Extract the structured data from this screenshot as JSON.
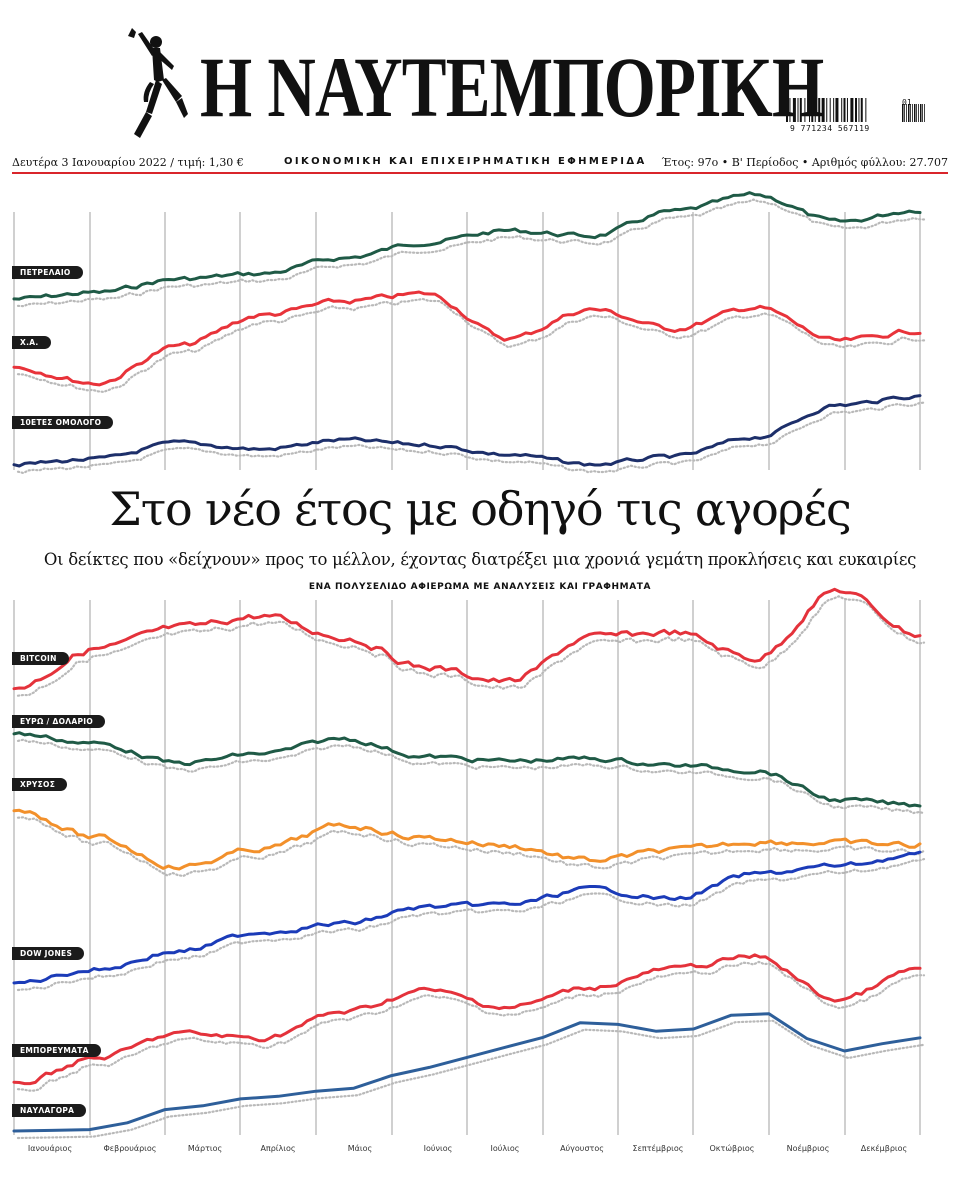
{
  "masthead": {
    "title": "Η ΝΑΥΤΕΜΠΟΡΙΚΗ",
    "date_price": "Δευτέρα 3 Ιανουαρίου 2022 / τιμή: 1,30 €",
    "tagline": "ΟΙΚΟΝΟΜΙΚΗ ΚΑΙ ΕΠΙΧΕΙΡΗΜΑΤΙΚΗ ΕΦΗΜΕΡΙΔΑ",
    "issue_info": "Έτος: 97ο • Β' Περίοδος • Αριθμός φύλλου: 27.707",
    "barcode_digits": "9 771234 567119",
    "barcode_issue": "01",
    "logo_icon": "hermes-statue-icon"
  },
  "headline": "Στο νέο έτος με οδηγό τις αγορές",
  "subhead": "Οι δείκτες που «δείχνουν» προς το μέλλον, έχοντας διατρέξει μια χρονιά γεμάτη προκλήσεις και ευκαιρίες",
  "kicker": "ΕΝΑ ΠΟΛΥΣΕΛΙΔΟ ΑΦΙΕΡΩΜΑ ΜΕ ΑΝΑΛΥΣΕΙΣ ΚΑΙ ΓΡΑΦΗΜΑΤΑ",
  "colors": {
    "accent_red": "#d9252b",
    "petrol": "#1f5a46",
    "xa": "#e8333a",
    "bond": "#1d2f6a",
    "bitcoin": "#e4323b",
    "eurusd": "#1f5a46",
    "gold": "#f2902b",
    "dowjones": "#1b3bb8",
    "commodities": "#e4323b",
    "freight": "#2e5f9a"
  },
  "chart_data": {
    "type": "line",
    "x": [
      "Ιανουάριος",
      "Φεβρουάριος",
      "Μάρτιος",
      "Απρίλιος",
      "Μάιος",
      "Ιούνιος",
      "Ιούλιος",
      "Αύγουστος",
      "Σεπτέμβριος",
      "Οκτώβριος",
      "Νοέμβριος",
      "Δεκέμβριος"
    ],
    "grid": "vertical",
    "series": [
      {
        "name": "ΠΕΤΡΕΛΑΙΟ",
        "color": "#1f5a46",
        "values": [
          1,
          7,
          20,
          25,
          40,
          55,
          66,
          61,
          84,
          100,
          74,
          86
        ]
      },
      {
        "name": "Χ.Α.",
        "color": "#e8333a",
        "values": [
          18,
          2,
          40,
          72,
          86,
          94,
          48,
          78,
          58,
          80,
          45,
          56
        ]
      },
      {
        "name": "10ΕΤΕΣ ΟΜΟΛΟΓΟ",
        "color": "#1d2f6a",
        "values": [
          2,
          9,
          30,
          22,
          34,
          28,
          15,
          2,
          12,
          38,
          80,
          92
        ]
      },
      {
        "name": "BITCOIN",
        "color": "#e4323b",
        "values": [
          15,
          48,
          66,
          76,
          58,
          32,
          20,
          58,
          62,
          40,
          98,
          60
        ]
      },
      {
        "name": "ΕΥΡΩ / ΔΟΛΑΡΙΟ",
        "color": "#1f5a46",
        "values": [
          98,
          86,
          62,
          74,
          92,
          70,
          65,
          68,
          60,
          54,
          18,
          12
        ]
      },
      {
        "name": "ΧΡΥΣΟΣ",
        "color": "#f2902b",
        "values": [
          95,
          55,
          15,
          40,
          72,
          55,
          44,
          24,
          38,
          50,
          48,
          45
        ]
      },
      {
        "name": "DOW JONES",
        "color": "#1b3bb8",
        "values": [
          5,
          15,
          28,
          42,
          48,
          60,
          62,
          73,
          66,
          84,
          90,
          98
        ]
      },
      {
        "name": "ΕΜΠΟΡΕΥΜΑΤΑ",
        "color": "#e4323b",
        "values": [
          5,
          22,
          38,
          35,
          52,
          66,
          55,
          68,
          80,
          88,
          60,
          80
        ]
      },
      {
        "name": "ΝΑΥΛΑΓΟΡΑ",
        "color": "#2e5f9a",
        "values": [
          3,
          4,
          20,
          28,
          34,
          50,
          65,
          84,
          76,
          92,
          62,
          72
        ]
      }
    ]
  }
}
